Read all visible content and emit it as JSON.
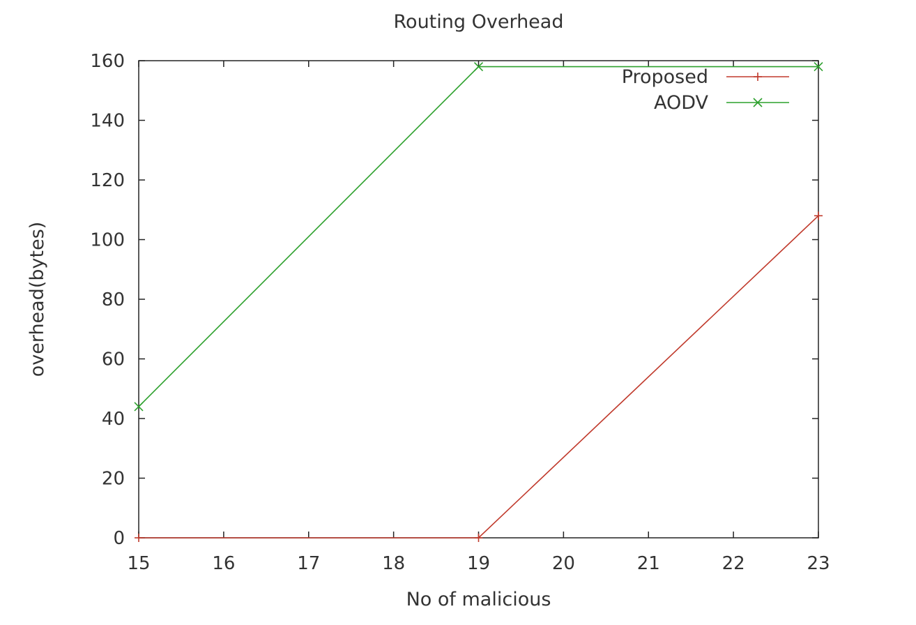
{
  "chart_data": {
    "type": "line",
    "title": "Routing Overhead",
    "xlabel": "No of malicious",
    "ylabel": "overhead(bytes)",
    "xlim": [
      15,
      23
    ],
    "ylim": [
      0,
      160
    ],
    "xticks": [
      15,
      16,
      17,
      18,
      19,
      20,
      21,
      22,
      23
    ],
    "yticks": [
      0,
      20,
      40,
      60,
      80,
      100,
      120,
      140,
      160
    ],
    "grid": false,
    "legend_position": "top-right",
    "series": [
      {
        "name": "Proposed",
        "color": "#c0392b",
        "marker": "plus",
        "x": [
          15,
          19,
          23
        ],
        "y": [
          0,
          0,
          108
        ]
      },
      {
        "name": "AODV",
        "color": "#2ca02c",
        "marker": "cross",
        "x": [
          15,
          19,
          23
        ],
        "y": [
          44,
          158,
          158
        ]
      }
    ]
  }
}
